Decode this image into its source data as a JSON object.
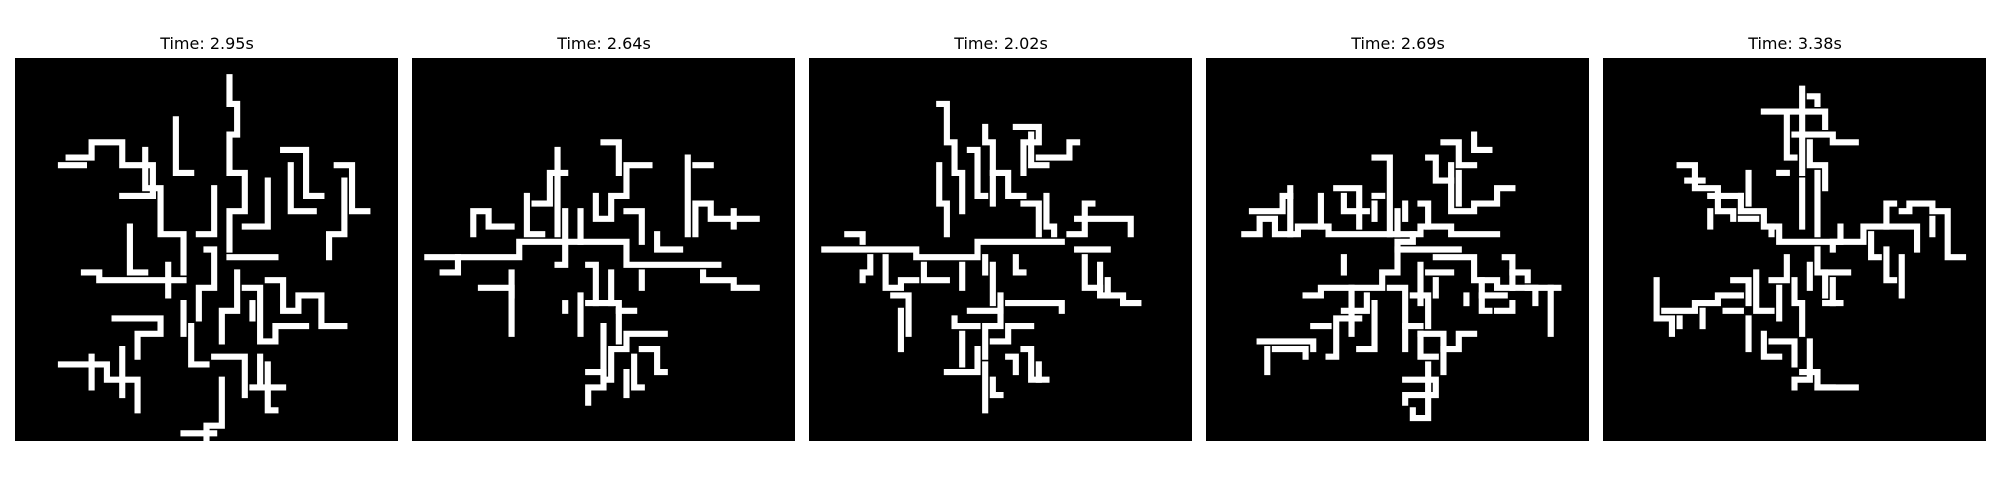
{
  "colors": {
    "background": "#000000",
    "cluster": "#ffffff",
    "title_text": "#000000"
  },
  "panels": [
    {
      "title": "Time: 2.95s"
    },
    {
      "title": "Time: 2.64s"
    },
    {
      "title": "Time: 2.02s"
    },
    {
      "title": "Time: 2.69s"
    },
    {
      "title": "Time: 3.38s"
    }
  ]
}
